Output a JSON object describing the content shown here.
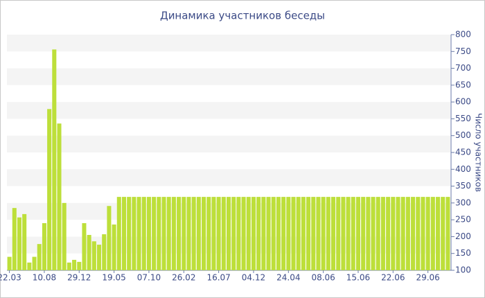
{
  "chart_data": {
    "type": "bar",
    "title": "Динамика участников беседы",
    "y_label": "Число участников",
    "categories": [
      "22.03",
      null,
      null,
      null,
      null,
      null,
      null,
      "10.08",
      null,
      null,
      null,
      null,
      null,
      null,
      "29.12",
      null,
      null,
      null,
      null,
      null,
      null,
      "19.05",
      null,
      null,
      null,
      null,
      null,
      null,
      "07.10",
      null,
      null,
      null,
      null,
      null,
      null,
      "26.02",
      null,
      null,
      null,
      null,
      null,
      null,
      "16.07",
      null,
      null,
      null,
      null,
      null,
      null,
      "04.12",
      null,
      null,
      null,
      null,
      null,
      null,
      "24.04",
      null,
      null,
      null,
      null,
      null,
      null,
      "08.06",
      null,
      null,
      null,
      null,
      null,
      null,
      "15.06",
      null,
      null,
      null,
      null,
      null,
      null,
      "22.06",
      null,
      null,
      null,
      null,
      null,
      null,
      "29.06",
      null,
      null,
      null,
      null
    ],
    "values": [
      140,
      285,
      257,
      267,
      123,
      140,
      178,
      240,
      579,
      756,
      536,
      300,
      123,
      131,
      125,
      240,
      205,
      186,
      176,
      207,
      291,
      236,
      318,
      318,
      318,
      318,
      318,
      318,
      318,
      318,
      318,
      318,
      318,
      318,
      318,
      318,
      318,
      318,
      318,
      318,
      318,
      318,
      318,
      318,
      318,
      318,
      318,
      318,
      318,
      318,
      318,
      318,
      318,
      318,
      318,
      318,
      318,
      318,
      318,
      318,
      318,
      318,
      318,
      318,
      318,
      318,
      318,
      318,
      318,
      318,
      318,
      318,
      318,
      318,
      318,
      318,
      318,
      318,
      318,
      318,
      318,
      318,
      318,
      318,
      318,
      318,
      318,
      318,
      318
    ],
    "color": "#bddf3a",
    "ylim": [
      100,
      800
    ],
    "yticks": [
      100,
      150,
      200,
      250,
      300,
      350,
      400,
      450,
      500,
      550,
      600,
      650,
      700,
      750,
      800
    ],
    "grid": "bands",
    "y_axis_side": "right"
  }
}
